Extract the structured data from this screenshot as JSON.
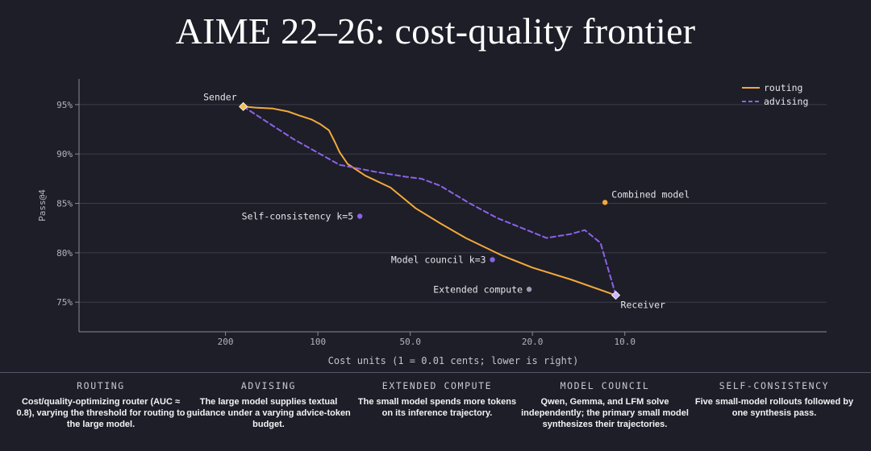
{
  "title": "AIME 22–26: cost-quality frontier",
  "chart_data": {
    "type": "line",
    "xlabel": "Cost units (1 = 0.01 cents; lower is right)",
    "ylabel": "Pass@4",
    "x_scale": "log",
    "x_reversed": true,
    "xlim": [
      600,
      2.2
    ],
    "ylim": [
      72.0,
      97.6
    ],
    "x_ticks": [
      200,
      100,
      50,
      20,
      10
    ],
    "x_tick_labels": [
      "200",
      "100",
      "50.0",
      "20.0",
      "10.0"
    ],
    "y_ticks": [
      75,
      80,
      85,
      90,
      95
    ],
    "y_tick_labels": [
      "75%",
      "80%",
      "85%",
      "90%",
      "95%"
    ],
    "grid": "horizontal",
    "legend": "top-right",
    "series": [
      {
        "name": "routing",
        "color": "#f2a93b",
        "style": "solid",
        "points": [
          [
            175,
            94.8
          ],
          [
            160,
            94.7
          ],
          [
            140,
            94.6
          ],
          [
            125,
            94.3
          ],
          [
            115,
            93.9
          ],
          [
            105,
            93.5
          ],
          [
            98,
            93.0
          ],
          [
            92,
            92.4
          ],
          [
            88,
            91.2
          ],
          [
            85,
            90.2
          ],
          [
            80,
            89.0
          ],
          [
            70,
            87.8
          ],
          [
            58,
            86.6
          ],
          [
            48,
            84.5
          ],
          [
            40,
            83.0
          ],
          [
            33,
            81.5
          ],
          [
            25,
            79.7
          ],
          [
            20,
            78.5
          ],
          [
            15,
            77.3
          ],
          [
            10.7,
            75.7
          ]
        ]
      },
      {
        "name": "advising",
        "color": "#8a63e8",
        "style": "dashed",
        "points": [
          [
            175,
            94.8
          ],
          [
            120,
            91.5
          ],
          [
            85,
            88.9
          ],
          [
            65,
            88.2
          ],
          [
            52,
            87.7
          ],
          [
            46,
            87.5
          ],
          [
            40,
            86.8
          ],
          [
            32,
            85.0
          ],
          [
            26,
            83.5
          ],
          [
            22,
            82.6
          ],
          [
            18,
            81.5
          ],
          [
            15,
            81.9
          ],
          [
            13.5,
            82.3
          ],
          [
            12,
            81.0
          ],
          [
            10.7,
            75.7
          ]
        ]
      }
    ],
    "endpoints": [
      {
        "label": "Sender",
        "x": 175,
        "y": 94.8,
        "color": "#f2c14e"
      },
      {
        "label": "Receiver",
        "x": 10.7,
        "y": 75.7,
        "color": "#c8b8ff"
      }
    ],
    "points": [
      {
        "label": "Combined model",
        "x": 11.6,
        "y": 85.1,
        "color": "#f2a93b"
      },
      {
        "label": "Self-consistency k=5",
        "x": 73,
        "y": 83.7,
        "color": "#8a63e8"
      },
      {
        "label": "Model council k=3",
        "x": 27,
        "y": 79.3,
        "color": "#8a63e8"
      },
      {
        "label": "Extended compute",
        "x": 20.5,
        "y": 76.3,
        "color": "#9b9bb0"
      }
    ]
  },
  "descriptions": [
    {
      "heading": "ROUTING",
      "text": "Cost/quality-optimizing router (AUC ≈ 0.8), varying the threshold for routing to the large model."
    },
    {
      "heading": "ADVISING",
      "text": "The large model supplies textual guidance under a varying advice-token budget."
    },
    {
      "heading": "EXTENDED COMPUTE",
      "text": "The small model spends more tokens on its inference trajectory."
    },
    {
      "heading": "MODEL COUNCIL",
      "text": "Qwen, Gemma, and LFM solve independently; the primary small model synthesizes their trajectories."
    },
    {
      "heading": "SELF-CONSISTENCY",
      "text": "Five small-model rollouts followed by one synthesis pass."
    }
  ]
}
